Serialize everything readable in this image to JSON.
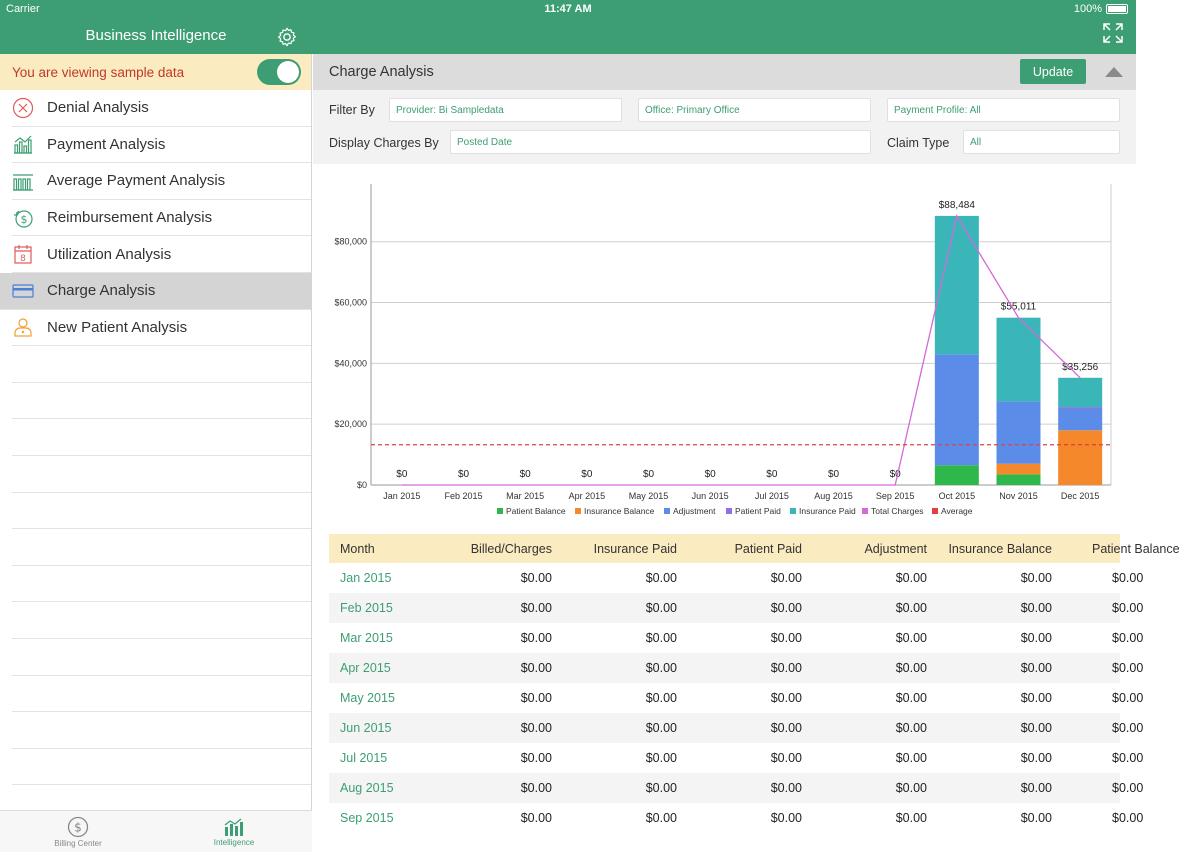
{
  "status": {
    "carrier": "Carrier",
    "time": "11:47 AM",
    "battery": "100%"
  },
  "app": {
    "title": "Business Intelligence"
  },
  "sample_banner": {
    "text": "You are viewing sample data",
    "toggle_on": true
  },
  "sidebar": {
    "items": [
      {
        "label": "Denial Analysis",
        "icon": "denial-icon"
      },
      {
        "label": "Payment Analysis",
        "icon": "payment-chart-icon"
      },
      {
        "label": "Average Payment Analysis",
        "icon": "average-chart-icon"
      },
      {
        "label": "Reimbursement Analysis",
        "icon": "reimbursement-icon"
      },
      {
        "label": "Utilization Analysis",
        "icon": "calendar-icon"
      },
      {
        "label": "Charge Analysis",
        "icon": "card-icon",
        "active": true
      },
      {
        "label": "New Patient Analysis",
        "icon": "new-patient-icon"
      }
    ]
  },
  "tabbar": {
    "tabs": [
      {
        "label": "Billing Center"
      },
      {
        "label": "Intelligence"
      }
    ]
  },
  "main": {
    "title": "Charge Analysis",
    "update_label": "Update",
    "filters": {
      "filter_by_label": "Filter By",
      "provider": "Provider: Bi Sampledata",
      "office": "Office: Primary Office",
      "payment_profile": "Payment Profile: All",
      "display_by_label": "Display Charges By",
      "display_by": "Posted Date",
      "claim_type_label": "Claim Type",
      "claim_type": "All"
    }
  },
  "colors": {
    "accent": "#3d9e73",
    "patient_balance": "#2eb84c",
    "insurance_balance": "#f5882a",
    "adjustment": "#5b8ce8",
    "patient_paid": "#8f6ee6",
    "insurance_paid": "#3ab5b8",
    "total_charges": "#d36ad6",
    "average": "#e04040"
  },
  "chart_data": {
    "type": "bar",
    "stacked": true,
    "categories": [
      "Jan 2015",
      "Feb 2015",
      "Mar 2015",
      "Apr 2015",
      "May 2015",
      "Jun 2015",
      "Jul 2015",
      "Aug 2015",
      "Sep 2015",
      "Oct 2015",
      "Nov 2015",
      "Dec 2015"
    ],
    "series": [
      {
        "name": "Patient Balance",
        "values": [
          0,
          0,
          0,
          0,
          0,
          0,
          0,
          0,
          0,
          6500,
          3500,
          0
        ]
      },
      {
        "name": "Insurance Balance",
        "values": [
          0,
          0,
          0,
          0,
          0,
          0,
          0,
          0,
          0,
          0,
          3500,
          18000
        ]
      },
      {
        "name": "Adjustment",
        "values": [
          0,
          0,
          0,
          0,
          0,
          0,
          0,
          0,
          0,
          36500,
          20500,
          7000
        ]
      },
      {
        "name": "Patient Paid",
        "values": [
          0,
          0,
          0,
          0,
          0,
          0,
          0,
          0,
          0,
          0,
          0,
          500
        ]
      },
      {
        "name": "Insurance Paid",
        "values": [
          0,
          0,
          0,
          0,
          0,
          0,
          0,
          0,
          0,
          45484,
          27511,
          9756
        ]
      }
    ],
    "line_series": [
      {
        "name": "Total Charges",
        "values": [
          0,
          0,
          0,
          0,
          0,
          0,
          0,
          0,
          0,
          88484,
          55011,
          35256
        ]
      },
      {
        "name": "Average",
        "values": [
          13229,
          13229,
          13229,
          13229,
          13229,
          13229,
          13229,
          13229,
          13229,
          13229,
          13229,
          13229
        ]
      }
    ],
    "data_labels": [
      "$0",
      "$0",
      "$0",
      "$0",
      "$0",
      "$0",
      "$0",
      "$0",
      "$0",
      "$88,484",
      "$55,011",
      "$35,256"
    ],
    "y_ticks": [
      "$0",
      "$20,000",
      "$40,000",
      "$60,000",
      "$80,000"
    ],
    "y_tick_values": [
      0,
      20000,
      40000,
      60000,
      80000
    ],
    "ylim": [
      0,
      97000
    ],
    "legend_position": "bottom",
    "grid": true
  },
  "table": {
    "columns": [
      "Month",
      "Billed/Charges",
      "Insurance Paid",
      "Patient Paid",
      "Adjustment",
      "Insurance Balance",
      "Patient Balance"
    ],
    "rows": [
      [
        "Jan 2015",
        "$0.00",
        "$0.00",
        "$0.00",
        "$0.00",
        "$0.00",
        "$0.00"
      ],
      [
        "Feb 2015",
        "$0.00",
        "$0.00",
        "$0.00",
        "$0.00",
        "$0.00",
        "$0.00"
      ],
      [
        "Mar 2015",
        "$0.00",
        "$0.00",
        "$0.00",
        "$0.00",
        "$0.00",
        "$0.00"
      ],
      [
        "Apr 2015",
        "$0.00",
        "$0.00",
        "$0.00",
        "$0.00",
        "$0.00",
        "$0.00"
      ],
      [
        "May 2015",
        "$0.00",
        "$0.00",
        "$0.00",
        "$0.00",
        "$0.00",
        "$0.00"
      ],
      [
        "Jun 2015",
        "$0.00",
        "$0.00",
        "$0.00",
        "$0.00",
        "$0.00",
        "$0.00"
      ],
      [
        "Jul 2015",
        "$0.00",
        "$0.00",
        "$0.00",
        "$0.00",
        "$0.00",
        "$0.00"
      ],
      [
        "Aug 2015",
        "$0.00",
        "$0.00",
        "$0.00",
        "$0.00",
        "$0.00",
        "$0.00"
      ],
      [
        "Sep 2015",
        "$0.00",
        "$0.00",
        "$0.00",
        "$0.00",
        "$0.00",
        "$0.00"
      ]
    ]
  }
}
